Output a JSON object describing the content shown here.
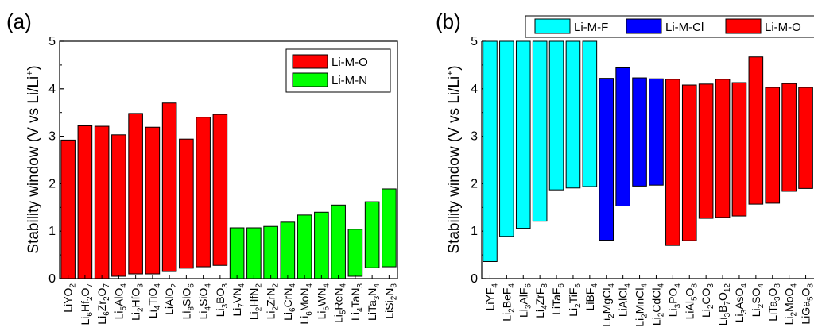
{
  "chart_data": [
    {
      "type": "bar",
      "panel_label": "(a)",
      "ylabel": "Stability window (V vs Li/Li",
      "ylabel_sup": "+",
      "ylabel_close": ")",
      "ylim": [
        0,
        5
      ],
      "yticks": [
        "0",
        "1",
        "2",
        "3",
        "4",
        "5"
      ],
      "grid": false,
      "legend_position": "top-right",
      "series": [
        {
          "name": "Li-M-O",
          "color": "#ff0000",
          "categories": [
            [
              {
                "t": "LiYO"
              },
              {
                "t": "2",
                "s": true
              }
            ],
            [
              {
                "t": "Li"
              },
              {
                "t": "6",
                "s": true
              },
              {
                "t": "Hf"
              },
              {
                "t": "2",
                "s": true
              },
              {
                "t": "O"
              },
              {
                "t": "7",
                "s": true
              }
            ],
            [
              {
                "t": "Li"
              },
              {
                "t": "6",
                "s": true
              },
              {
                "t": "Zr"
              },
              {
                "t": "2",
                "s": true
              },
              {
                "t": "O"
              },
              {
                "t": "7",
                "s": true
              }
            ],
            [
              {
                "t": "Li"
              },
              {
                "t": "5",
                "s": true
              },
              {
                "t": "AlO"
              },
              {
                "t": "4",
                "s": true
              }
            ],
            [
              {
                "t": "Li"
              },
              {
                "t": "2",
                "s": true
              },
              {
                "t": "HfO"
              },
              {
                "t": "3",
                "s": true
              }
            ],
            [
              {
                "t": "Li"
              },
              {
                "t": "4",
                "s": true
              },
              {
                "t": "TiO"
              },
              {
                "t": "4",
                "s": true
              }
            ],
            [
              {
                "t": "LiAlO"
              },
              {
                "t": "2",
                "s": true
              }
            ],
            [
              {
                "t": "Li"
              },
              {
                "t": "8",
                "s": true
              },
              {
                "t": "SiO"
              },
              {
                "t": "6",
                "s": true
              }
            ],
            [
              {
                "t": "Li"
              },
              {
                "t": "4",
                "s": true
              },
              {
                "t": "SiO"
              },
              {
                "t": "4",
                "s": true
              }
            ],
            [
              {
                "t": "Li"
              },
              {
                "t": "3",
                "s": true
              },
              {
                "t": "BO"
              },
              {
                "t": "3",
                "s": true
              }
            ]
          ],
          "ranges": [
            [
              0.0,
              2.92
            ],
            [
              0.0,
              3.22
            ],
            [
              0.0,
              3.21
            ],
            [
              0.05,
              3.03
            ],
            [
              0.1,
              3.48
            ],
            [
              0.1,
              3.19
            ],
            [
              0.15,
              3.7
            ],
            [
              0.22,
              2.94
            ],
            [
              0.25,
              3.4
            ],
            [
              0.28,
              3.46
            ]
          ]
        },
        {
          "name": "Li-M-N",
          "color": "#00ff00",
          "categories": [
            [
              {
                "t": "Li"
              },
              {
                "t": "7",
                "s": true
              },
              {
                "t": "VN"
              },
              {
                "t": "4",
                "s": true
              }
            ],
            [
              {
                "t": "Li"
              },
              {
                "t": "2",
                "s": true
              },
              {
                "t": "HfN"
              },
              {
                "t": "2",
                "s": true
              }
            ],
            [
              {
                "t": "Li"
              },
              {
                "t": "2",
                "s": true
              },
              {
                "t": "ZrN"
              },
              {
                "t": "2",
                "s": true
              }
            ],
            [
              {
                "t": "Li"
              },
              {
                "t": "6",
                "s": true
              },
              {
                "t": "CrN"
              },
              {
                "t": "4",
                "s": true
              }
            ],
            [
              {
                "t": "Li"
              },
              {
                "t": "6",
                "s": true
              },
              {
                "t": "MoN"
              },
              {
                "t": "4",
                "s": true
              }
            ],
            [
              {
                "t": "Li"
              },
              {
                "t": "6",
                "s": true
              },
              {
                "t": "WN"
              },
              {
                "t": "4",
                "s": true
              }
            ],
            [
              {
                "t": "Li"
              },
              {
                "t": "5",
                "s": true
              },
              {
                "t": "ReN"
              },
              {
                "t": "4",
                "s": true
              }
            ],
            [
              {
                "t": "Li"
              },
              {
                "t": "4",
                "s": true
              },
              {
                "t": "TaN"
              },
              {
                "t": "3",
                "s": true
              }
            ],
            [
              {
                "t": "LiTa"
              },
              {
                "t": "3",
                "s": true
              },
              {
                "t": "N"
              },
              {
                "t": "4",
                "s": true
              }
            ],
            [
              {
                "t": "LiSi"
              },
              {
                "t": "2",
                "s": true
              },
              {
                "t": "N"
              },
              {
                "t": "3",
                "s": true
              }
            ]
          ],
          "ranges": [
            [
              0.0,
              1.07
            ],
            [
              0.0,
              1.07
            ],
            [
              0.0,
              1.1
            ],
            [
              0.0,
              1.19
            ],
            [
              0.0,
              1.34
            ],
            [
              0.0,
              1.4
            ],
            [
              0.0,
              1.55
            ],
            [
              0.05,
              1.04
            ],
            [
              0.23,
              1.62
            ],
            [
              0.25,
              1.89
            ]
          ]
        }
      ]
    },
    {
      "type": "bar",
      "panel_label": "(b)",
      "ylabel": "Stability window (V vs Li/Li",
      "ylabel_sup": "+",
      "ylabel_close": ")",
      "ylim": [
        0,
        5
      ],
      "yticks": [
        "0",
        "1",
        "2",
        "3",
        "4",
        "5"
      ],
      "grid": false,
      "legend_position": "top",
      "series": [
        {
          "name": "Li-M-F",
          "color": "#00ffff",
          "categories": [
            [
              {
                "t": "LiYF"
              },
              {
                "t": "4",
                "s": true
              }
            ],
            [
              {
                "t": "Li"
              },
              {
                "t": "2",
                "s": true
              },
              {
                "t": "BeF"
              },
              {
                "t": "4",
                "s": true
              }
            ],
            [
              {
                "t": "Li"
              },
              {
                "t": "3",
                "s": true
              },
              {
                "t": "AlF"
              },
              {
                "t": "6",
                "s": true
              }
            ],
            [
              {
                "t": "Li"
              },
              {
                "t": "4",
                "s": true
              },
              {
                "t": "ZrF"
              },
              {
                "t": "8",
                "s": true
              }
            ],
            [
              {
                "t": "LiTaF"
              },
              {
                "t": "6",
                "s": true
              }
            ],
            [
              {
                "t": "Li"
              },
              {
                "t": "2",
                "s": true
              },
              {
                "t": "TiF"
              },
              {
                "t": "6",
                "s": true
              }
            ],
            [
              {
                "t": "LiBF"
              },
              {
                "t": "4",
                "s": true
              }
            ]
          ],
          "ranges": [
            [
              0.36,
              5.0
            ],
            [
              0.89,
              5.0
            ],
            [
              1.06,
              5.0
            ],
            [
              1.21,
              5.0
            ],
            [
              1.87,
              5.0
            ],
            [
              1.91,
              5.0
            ],
            [
              1.94,
              5.0
            ]
          ]
        },
        {
          "name": "Li-M-Cl",
          "color": "#0000ff",
          "categories": [
            [
              {
                "t": "Li"
              },
              {
                "t": "2",
                "s": true
              },
              {
                "t": "MgCl"
              },
              {
                "t": "4",
                "s": true
              }
            ],
            [
              {
                "t": "LiAlCl"
              },
              {
                "t": "4",
                "s": true
              }
            ],
            [
              {
                "t": "Li"
              },
              {
                "t": "2",
                "s": true
              },
              {
                "t": "MnCl"
              },
              {
                "t": "4",
                "s": true
              }
            ],
            [
              {
                "t": "Li"
              },
              {
                "t": "2",
                "s": true
              },
              {
                "t": "CdCl"
              },
              {
                "t": "4",
                "s": true
              }
            ]
          ],
          "ranges": [
            [
              0.81,
              4.22
            ],
            [
              1.53,
              4.44
            ],
            [
              1.95,
              4.23
            ],
            [
              1.97,
              4.21
            ]
          ]
        },
        {
          "name": "Li-M-O",
          "color": "#ff0000",
          "categories": [
            [
              {
                "t": "Li"
              },
              {
                "t": "3",
                "s": true
              },
              {
                "t": "PO"
              },
              {
                "t": "4",
                "s": true
              }
            ],
            [
              {
                "t": "LiAl"
              },
              {
                "t": "5",
                "s": true
              },
              {
                "t": "O"
              },
              {
                "t": "8",
                "s": true
              }
            ],
            [
              {
                "t": "Li"
              },
              {
                "t": "2",
                "s": true
              },
              {
                "t": "CO"
              },
              {
                "t": "3",
                "s": true
              }
            ],
            [
              {
                "t": "Li"
              },
              {
                "t": "3",
                "s": true
              },
              {
                "t": "B"
              },
              {
                "t": "7",
                "s": true
              },
              {
                "t": "O"
              },
              {
                "t": "12",
                "s": true
              }
            ],
            [
              {
                "t": "Li"
              },
              {
                "t": "3",
                "s": true
              },
              {
                "t": "AsO"
              },
              {
                "t": "4",
                "s": true
              }
            ],
            [
              {
                "t": "Li"
              },
              {
                "t": "2",
                "s": true
              },
              {
                "t": "SO"
              },
              {
                "t": "4",
                "s": true
              }
            ],
            [
              {
                "t": "LiTa"
              },
              {
                "t": "3",
                "s": true
              },
              {
                "t": "O"
              },
              {
                "t": "8",
                "s": true
              }
            ],
            [
              {
                "t": "Li"
              },
              {
                "t": "2",
                "s": true
              },
              {
                "t": "MoO"
              },
              {
                "t": "4",
                "s": true
              }
            ],
            [
              {
                "t": "LiGa"
              },
              {
                "t": "5",
                "s": true
              },
              {
                "t": "O"
              },
              {
                "t": "8",
                "s": true
              }
            ]
          ],
          "ranges": [
            [
              0.7,
              4.2
            ],
            [
              0.8,
              4.08
            ],
            [
              1.27,
              4.1
            ],
            [
              1.29,
              4.2
            ],
            [
              1.32,
              4.13
            ],
            [
              1.57,
              4.67
            ],
            [
              1.59,
              4.03
            ],
            [
              1.84,
              4.11
            ],
            [
              1.9,
              4.03
            ]
          ]
        }
      ]
    }
  ]
}
